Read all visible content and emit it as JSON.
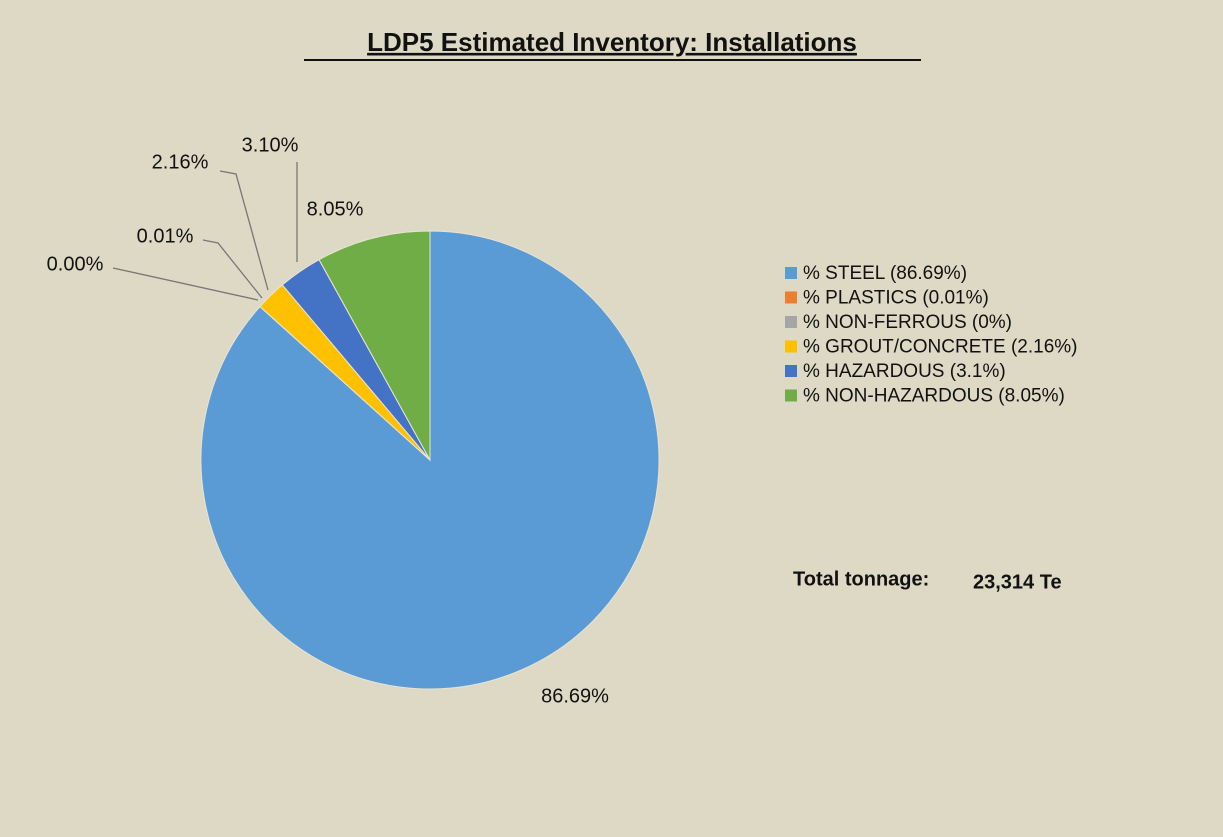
{
  "chart_data": {
    "type": "pie",
    "title": "LDP5 Estimated Inventory: Installations",
    "categories": [
      "% STEEL (86.69%)",
      "% PLASTICS (0.01%)",
      "% NON-FERROUS (0%)",
      "% GROUT/CONCRETE (2.16%)",
      "% HAZARDOUS (3.1%)",
      "% NON-HAZARDOUS (8.05%)"
    ],
    "values": [
      86.69,
      0.01,
      0,
      2.16,
      3.1,
      8.05
    ],
    "value_labels": [
      "86.69%",
      "0.01%",
      "0.00%",
      "2.16%",
      "3.10%",
      "8.05%"
    ],
    "colors": [
      "#5b9bd5",
      "#ed7d31",
      "#a5a5a5",
      "#ffc000",
      "#4472c4",
      "#70ad47"
    ],
    "legend": "right",
    "total_label": "Total tonnage:",
    "total_value": "23,314 Te"
  }
}
